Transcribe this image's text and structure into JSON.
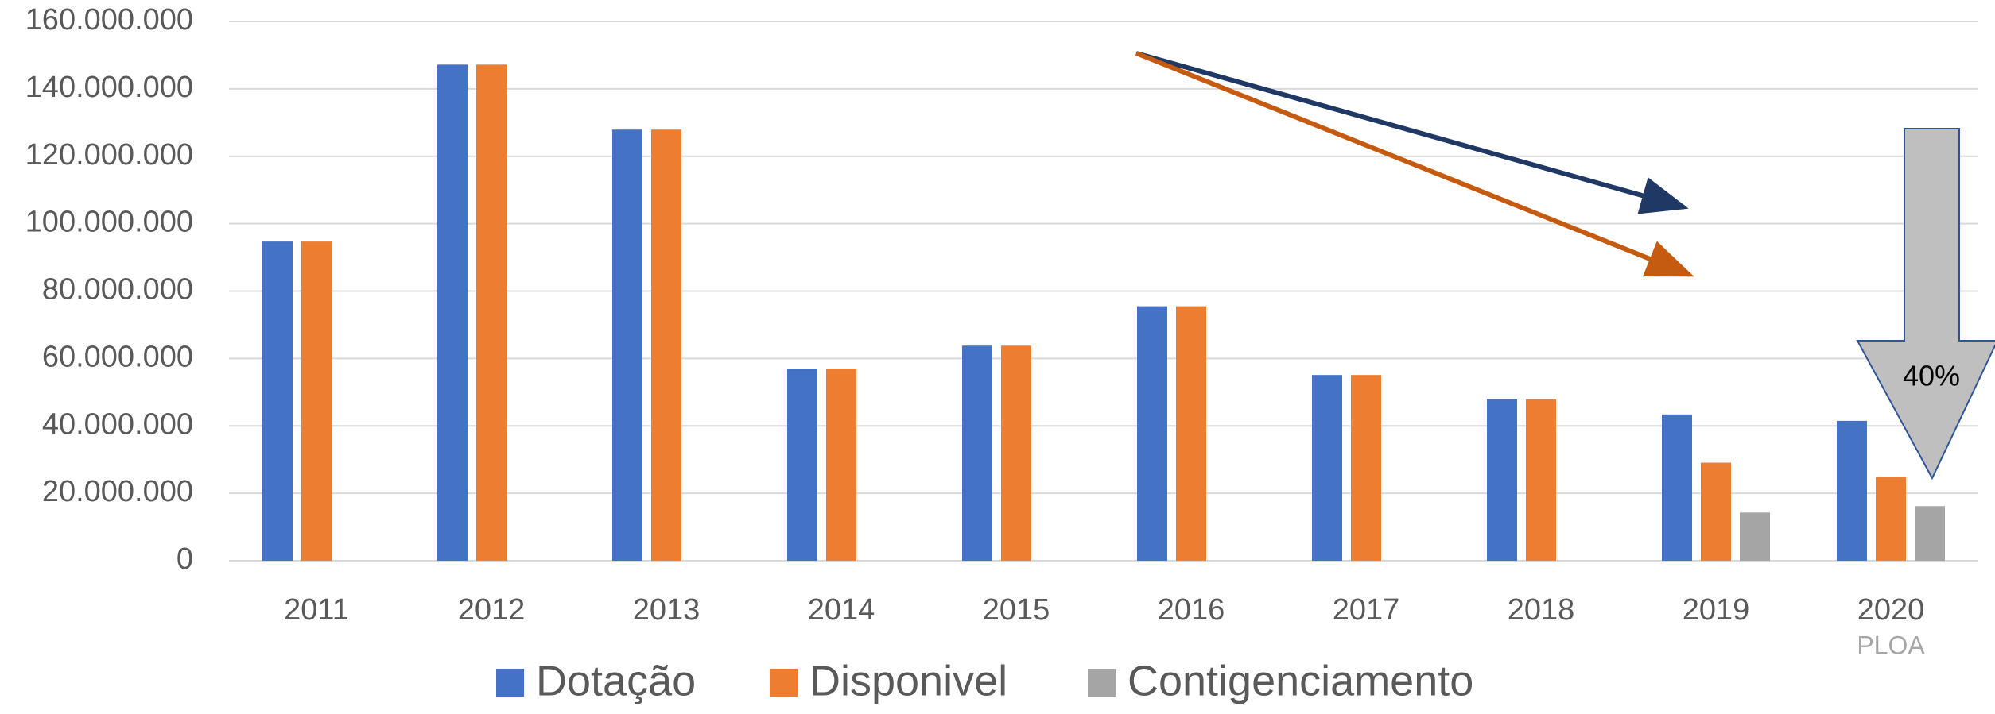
{
  "chart_data": {
    "type": "bar",
    "categories": [
      "2011",
      "2012",
      "2013",
      "2014",
      "2015",
      "2016",
      "2017",
      "2018",
      "2019",
      "2020"
    ],
    "category_note": "PLOA",
    "series": [
      {
        "name": "Dotação",
        "color": "#4472c4",
        "values": [
          94700000,
          147200000,
          127900000,
          57000000,
          63800000,
          75500000,
          55100000,
          47900000,
          43400000,
          41500000
        ]
      },
      {
        "name": "Disponivel",
        "color": "#ed7d31",
        "values": [
          94700000,
          147200000,
          127900000,
          57000000,
          63800000,
          75500000,
          55100000,
          47900000,
          29100000,
          24900000
        ]
      },
      {
        "name": "Contigenciamento",
        "color": "#a5a5a5",
        "values": [
          null,
          null,
          null,
          null,
          null,
          null,
          null,
          null,
          14300000,
          16200000
        ]
      }
    ],
    "ylim": [
      0,
      160000000
    ],
    "yticks": [
      0,
      {
        "value": 20000000,
        "label": "20.000.000"
      },
      {
        "value": 40000000,
        "label": "40.000.000"
      },
      {
        "value": 60000000,
        "label": "60.000.000"
      },
      {
        "value": 80000000,
        "label": "80.000.000"
      },
      {
        "value": 100000000,
        "label": "100.000.000"
      },
      {
        "value": 120000000,
        "label": "120.000.000"
      },
      {
        "value": 140000000,
        "label": "140.000.000"
      },
      {
        "value": 160000000,
        "label": "160.000.000"
      }
    ],
    "grid": true,
    "legend": "bottom",
    "annotation": "40%"
  }
}
